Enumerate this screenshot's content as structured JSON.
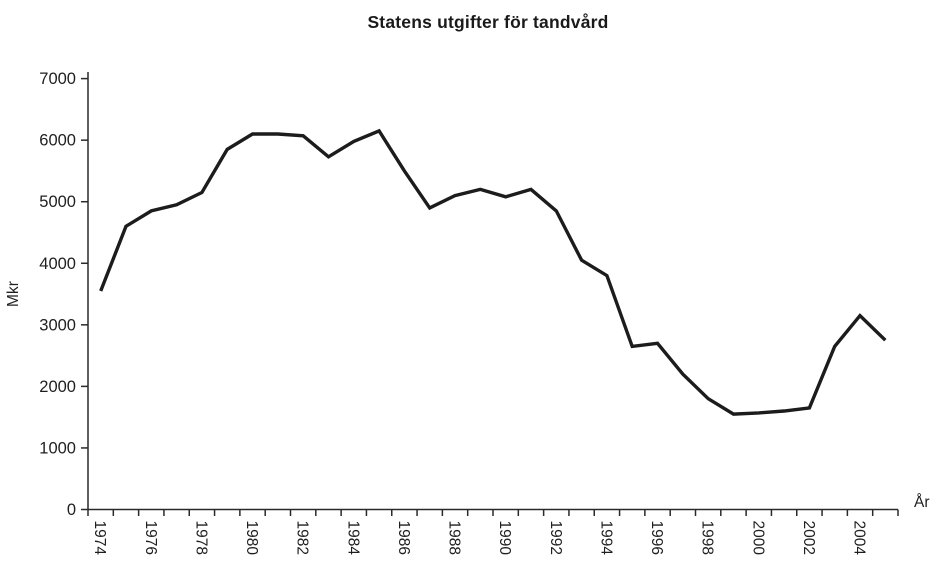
{
  "title": "Statens utgifter för tandvård",
  "chart_data": {
    "type": "line",
    "title": "Statens utgifter för tandvård",
    "xlabel": "År",
    "ylabel": "Mkr",
    "x": [
      1974,
      1975,
      1976,
      1977,
      1978,
      1979,
      1980,
      1981,
      1982,
      1983,
      1984,
      1985,
      1986,
      1987,
      1988,
      1989,
      1990,
      1991,
      1992,
      1993,
      1994,
      1995,
      1996,
      1997,
      1998,
      1999,
      2000,
      2001,
      2002,
      2003,
      2004,
      2005
    ],
    "values": [
      3550,
      4600,
      4850,
      4950,
      5150,
      5850,
      6100,
      6100,
      6070,
      5730,
      5980,
      6150,
      5500,
      4900,
      5100,
      5200,
      5080,
      5200,
      4850,
      4050,
      3800,
      2650,
      2700,
      2200,
      1800,
      1550,
      1570,
      1600,
      1650,
      2650,
      3150,
      2750
    ],
    "ylim": [
      0,
      7000
    ],
    "ytick_interval": 1000,
    "ytick_labels": [
      "0",
      "1000",
      "2000",
      "3000",
      "4000",
      "5000",
      "6000",
      "7000"
    ],
    "xtick_labels": [
      "1974",
      "1976",
      "1978",
      "1980",
      "1982",
      "1984",
      "1986",
      "1988",
      "1990",
      "1992",
      "1994",
      "1996",
      "1998",
      "2000",
      "2002",
      "2004"
    ],
    "xtick_label_interval": 2,
    "grid": false,
    "legend": "none",
    "line_color": "#1c1c1c",
    "axis_color": "#2a2a2a",
    "background": "#ffffff"
  }
}
